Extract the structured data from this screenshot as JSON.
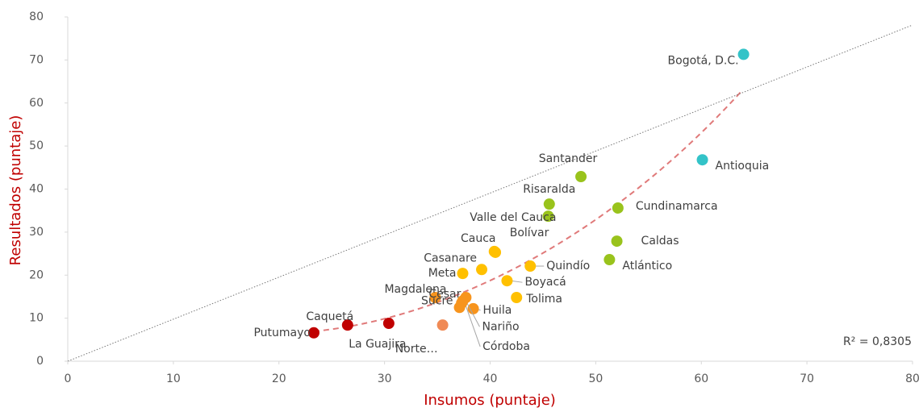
{
  "chart_data": {
    "type": "scatter",
    "x_label": "Insumos (puntaje)",
    "y_label": "Resultados (puntaje)",
    "annotation": "R² = 0,8305",
    "xlim": [
      0,
      80
    ],
    "ylim": [
      0,
      80
    ],
    "xticks": [
      0,
      10,
      20,
      30,
      40,
      50,
      60,
      70,
      80
    ],
    "yticks": [
      0,
      10,
      20,
      30,
      40,
      50,
      60,
      70,
      80
    ],
    "labels": [
      "Bogotá, D.C.",
      "Antioquia",
      "Santander",
      "Risaralda",
      "Valle del Cauca",
      "Cundinamarca",
      "Caldas",
      "Atlántico",
      "Cauca",
      "Bolívar",
      "Casanare",
      "Meta",
      "Quindío",
      "Boyacá",
      "Tolima",
      "Magdalena",
      "Cesar",
      "Sucre",
      "Huila",
      "Nariño",
      "Córdoba",
      "Norte…",
      "La Guajira",
      "Caquetá",
      "Putumayo"
    ],
    "x": [
      64.0,
      60.1,
      48.6,
      45.6,
      45.5,
      52.1,
      52.0,
      51.3,
      40.4,
      40.5,
      39.2,
      37.4,
      43.8,
      41.6,
      42.5,
      34.8,
      37.7,
      37.1,
      38.4,
      37.4,
      37.3,
      35.5,
      30.4,
      26.5,
      23.3
    ],
    "y": [
      71.3,
      46.8,
      42.9,
      36.5,
      33.7,
      35.6,
      27.9,
      23.6,
      25.5,
      25.3,
      21.3,
      20.4,
      22.1,
      18.7,
      14.8,
      14.8,
      14.8,
      12.5,
      12.2,
      14.0,
      13.5,
      8.4,
      8.8,
      8.4,
      6.6
    ],
    "colors": [
      "#33c3c8",
      "#33c3c8",
      "#99c31c",
      "#99c31c",
      "#99c31c",
      "#99c31c",
      "#99c31c",
      "#99c31c",
      "#ffc000",
      "#ffc000",
      "#ffc000",
      "#ffc000",
      "#ffc000",
      "#ffc000",
      "#ffc000",
      "#f7941d",
      "#f7941d",
      "#f7941d",
      "#f7941d",
      "#f7941d",
      "#f7941d",
      "#f08a55",
      "#c00000",
      "#c00000",
      "#c00000"
    ]
  }
}
